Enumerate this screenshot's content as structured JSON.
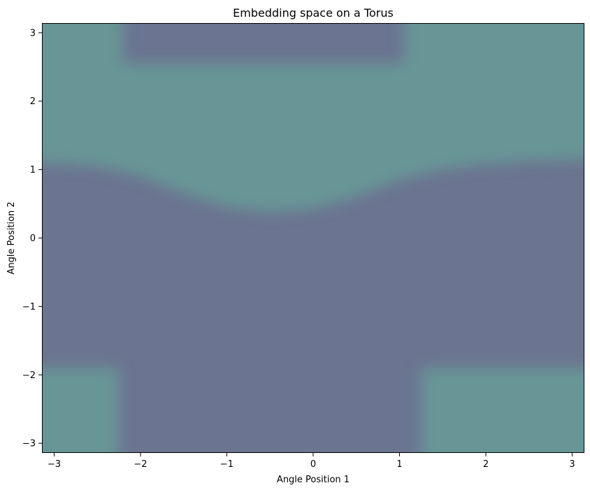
{
  "chart_data": {
    "type": "heatmap",
    "title": "Embedding space on a Torus",
    "xlabel": "Angle Position 1",
    "ylabel": "Angle Position 2",
    "xlim": [
      -3.14159,
      3.14159
    ],
    "ylim": [
      -3.14159,
      3.14159
    ],
    "xticks": [
      -3,
      -2,
      -1,
      0,
      1,
      2,
      3
    ],
    "yticks": [
      -3,
      -2,
      -1,
      0,
      1,
      2,
      3
    ],
    "xtick_labels": [
      "−3",
      "−2",
      "−1",
      "0",
      "1",
      "2",
      "3"
    ],
    "ytick_labels": [
      "−3",
      "−2",
      "−1",
      "0",
      "1",
      "2",
      "3"
    ],
    "grid": false,
    "colors": {
      "class_a": "#6b7490",
      "class_b": "#679596"
    },
    "regions": {
      "class_b_band_top_edge": 2.55,
      "class_b_band_bottom_edge": [
        {
          "x": -3.14,
          "y": 1.1
        },
        {
          "x": -2.5,
          "y": 1.05
        },
        {
          "x": -2.0,
          "y": 0.9
        },
        {
          "x": -1.5,
          "y": 0.65
        },
        {
          "x": -1.0,
          "y": 0.45
        },
        {
          "x": -0.5,
          "y": 0.38
        },
        {
          "x": 0.0,
          "y": 0.42
        },
        {
          "x": 0.5,
          "y": 0.6
        },
        {
          "x": 1.0,
          "y": 0.85
        },
        {
          "x": 1.5,
          "y": 1.0
        },
        {
          "x": 2.0,
          "y": 1.08
        },
        {
          "x": 2.5,
          "y": 1.12
        },
        {
          "x": 3.14,
          "y": 1.15
        }
      ],
      "class_b_top_corners": {
        "left_x": -2.2,
        "right_x": 1.05,
        "y": 2.55
      },
      "class_b_bottom_corners": {
        "left_x": -2.25,
        "right_x": 1.25,
        "y": -1.9
      }
    }
  }
}
